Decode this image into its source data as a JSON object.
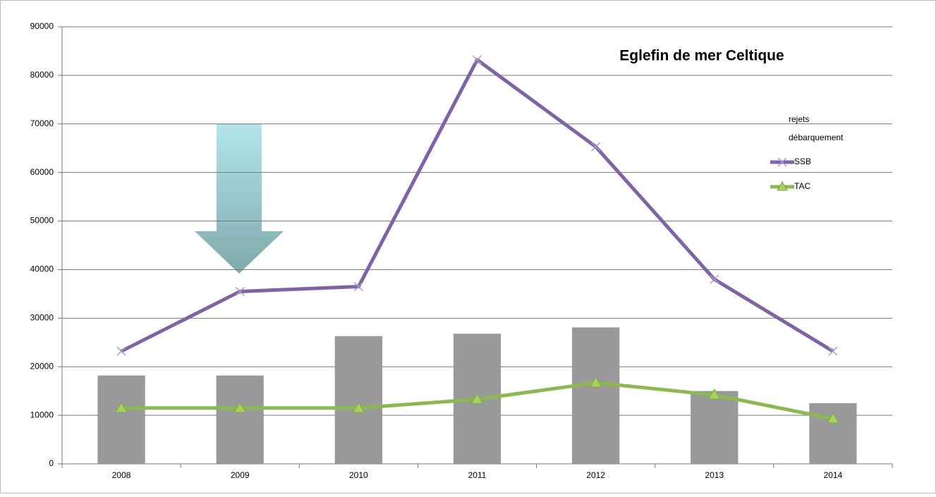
{
  "chart_data": {
    "type": "combo",
    "title": "Eglefin de mer Celtique",
    "categories": [
      "2008",
      "2009",
      "2010",
      "2011",
      "2012",
      "2013",
      "2014"
    ],
    "series": [
      {
        "name": "rejets",
        "type": "bar",
        "values": [
          null,
          null,
          null,
          null,
          null,
          null,
          null
        ]
      },
      {
        "name": "débarquement",
        "type": "bar",
        "color": "#999999",
        "values": [
          18200,
          18200,
          26300,
          26800,
          28100,
          15000,
          12500
        ]
      },
      {
        "name": "SSB",
        "type": "line",
        "marker": "x",
        "color": "#7f63a6",
        "values": [
          23200,
          35500,
          36500,
          83200,
          65300,
          38000,
          23200
        ]
      },
      {
        "name": "TAC",
        "type": "line",
        "marker": "triangle",
        "color": "#8db851",
        "values": [
          11500,
          11500,
          11500,
          13300,
          16700,
          14200,
          9300
        ]
      }
    ],
    "ylim": [
      0,
      90000
    ],
    "yticks": [
      0,
      10000,
      20000,
      30000,
      40000,
      50000,
      60000,
      70000,
      80000,
      90000
    ],
    "grid": true
  }
}
